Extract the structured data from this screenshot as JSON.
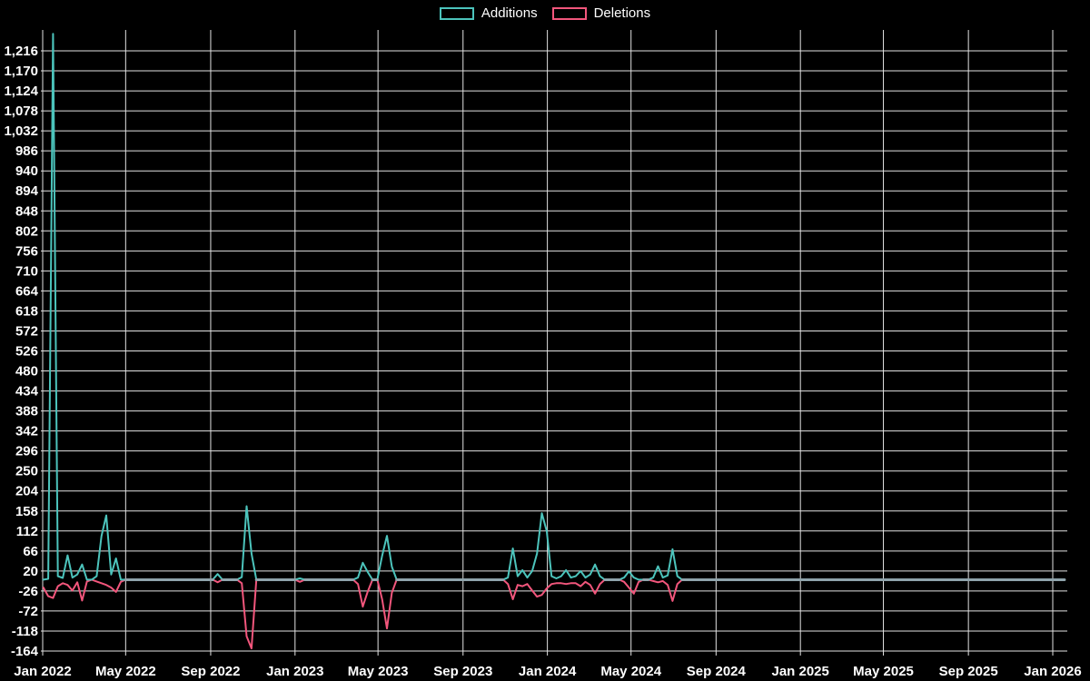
{
  "legend": {
    "additions_label": "Additions",
    "deletions_label": "Deletions"
  },
  "colors": {
    "background": "#000000",
    "additions": "#4cc4bc",
    "deletions": "#f2567c",
    "grid": "#e2e2e2",
    "zero_baseline_overlap": "#8fa3ab",
    "text": "#ffffff"
  },
  "chart_data": {
    "type": "line",
    "title": "",
    "xlabel": "",
    "ylabel": "",
    "legend_position": "top-center",
    "grid": true,
    "y_axis": {
      "tick_min": -164,
      "tick_max": 1216,
      "tick_step": 46,
      "render_min": -187,
      "render_max": 1264
    },
    "x_axis": {
      "start": "2022-01-01",
      "end": "2026-01-01",
      "ticks": [
        {
          "label": "Jan 2022",
          "date": "2022-01-01"
        },
        {
          "label": "May 2022",
          "date": "2022-05-01"
        },
        {
          "label": "Sep 2022",
          "date": "2022-09-01"
        },
        {
          "label": "Jan 2023",
          "date": "2023-01-01"
        },
        {
          "label": "May 2023",
          "date": "2023-05-01"
        },
        {
          "label": "Sep 2023",
          "date": "2023-09-01"
        },
        {
          "label": "Jan 2024",
          "date": "2024-01-01"
        },
        {
          "label": "May 2024",
          "date": "2024-05-01"
        },
        {
          "label": "Sep 2024",
          "date": "2024-09-01"
        },
        {
          "label": "Jan 2025",
          "date": "2025-01-01"
        },
        {
          "label": "May 2025",
          "date": "2025-05-01"
        },
        {
          "label": "Sep 2025",
          "date": "2025-09-01"
        },
        {
          "label": "Jan 2026",
          "date": "2026-01-01"
        }
      ]
    },
    "series_names": [
      "Additions",
      "Deletions"
    ],
    "columns": [
      "week",
      "additions",
      "deletions"
    ],
    "points": [
      [
        "2022-01-02",
        0,
        -18
      ],
      [
        "2022-01-09",
        2,
        -38
      ],
      [
        "2022-01-16",
        1255,
        -42
      ],
      [
        "2022-01-23",
        8,
        -15
      ],
      [
        "2022-01-30",
        4,
        -8
      ],
      [
        "2022-02-06",
        56,
        -12
      ],
      [
        "2022-02-13",
        5,
        -25
      ],
      [
        "2022-02-20",
        12,
        -6
      ],
      [
        "2022-02-27",
        35,
        -48
      ],
      [
        "2022-03-06",
        0,
        -4
      ],
      [
        "2022-03-13",
        0,
        0
      ],
      [
        "2022-03-20",
        8,
        -4
      ],
      [
        "2022-03-27",
        100,
        -8
      ],
      [
        "2022-04-03",
        148,
        -12
      ],
      [
        "2022-04-10",
        12,
        -18
      ],
      [
        "2022-04-17",
        49,
        -28
      ],
      [
        "2022-04-24",
        0,
        -5
      ],
      [
        "2022-05-01",
        0,
        0
      ],
      [
        "2022-09-04",
        0,
        0
      ],
      [
        "2022-09-11",
        13,
        -6
      ],
      [
        "2022-09-18",
        0,
        0
      ],
      [
        "2022-10-09",
        0,
        0
      ],
      [
        "2022-10-16",
        6,
        -8
      ],
      [
        "2022-10-23",
        169,
        -130
      ],
      [
        "2022-10-30",
        60,
        -158
      ],
      [
        "2022-11-06",
        0,
        0
      ],
      [
        "2023-01-01",
        0,
        0
      ],
      [
        "2023-01-08",
        3,
        -5
      ],
      [
        "2023-01-15",
        0,
        0
      ],
      [
        "2023-03-26",
        0,
        0
      ],
      [
        "2023-04-02",
        5,
        -10
      ],
      [
        "2023-04-09",
        39,
        -62
      ],
      [
        "2023-04-16",
        18,
        -28
      ],
      [
        "2023-04-23",
        0,
        0
      ],
      [
        "2023-04-30",
        0,
        0
      ],
      [
        "2023-05-07",
        55,
        -45
      ],
      [
        "2023-05-14",
        101,
        -112
      ],
      [
        "2023-05-21",
        30,
        -30
      ],
      [
        "2023-05-28",
        0,
        0
      ],
      [
        "2023-10-29",
        0,
        0
      ],
      [
        "2023-11-05",
        5,
        -10
      ],
      [
        "2023-11-12",
        72,
        -45
      ],
      [
        "2023-11-19",
        8,
        -12
      ],
      [
        "2023-11-26",
        22,
        -15
      ],
      [
        "2023-12-03",
        5,
        -10
      ],
      [
        "2023-12-10",
        20,
        -25
      ],
      [
        "2023-12-17",
        60,
        -39
      ],
      [
        "2023-12-24",
        153,
        -35
      ],
      [
        "2023-12-31",
        112,
        -20
      ],
      [
        "2024-01-07",
        8,
        -10
      ],
      [
        "2024-01-14",
        3,
        -8
      ],
      [
        "2024-01-21",
        8,
        -8
      ],
      [
        "2024-01-28",
        22,
        -10
      ],
      [
        "2024-02-04",
        5,
        -8
      ],
      [
        "2024-02-11",
        8,
        -8
      ],
      [
        "2024-02-18",
        20,
        -15
      ],
      [
        "2024-02-25",
        5,
        -5
      ],
      [
        "2024-03-03",
        12,
        -12
      ],
      [
        "2024-03-10",
        35,
        -32
      ],
      [
        "2024-03-17",
        8,
        -10
      ],
      [
        "2024-03-24",
        0,
        0
      ],
      [
        "2024-04-14",
        0,
        0
      ],
      [
        "2024-04-21",
        5,
        -5
      ],
      [
        "2024-04-28",
        19,
        -18
      ],
      [
        "2024-05-05",
        5,
        -32
      ],
      [
        "2024-05-12",
        0,
        -5
      ],
      [
        "2024-05-19",
        0,
        0
      ],
      [
        "2024-05-26",
        0,
        0
      ],
      [
        "2024-06-02",
        5,
        -3
      ],
      [
        "2024-06-09",
        31,
        -6
      ],
      [
        "2024-06-16",
        5,
        -3
      ],
      [
        "2024-06-23",
        10,
        -12
      ],
      [
        "2024-06-30",
        70,
        -49
      ],
      [
        "2024-07-07",
        8,
        -10
      ],
      [
        "2024-07-14",
        0,
        0
      ],
      [
        "2026-01-18",
        0,
        0
      ]
    ]
  }
}
